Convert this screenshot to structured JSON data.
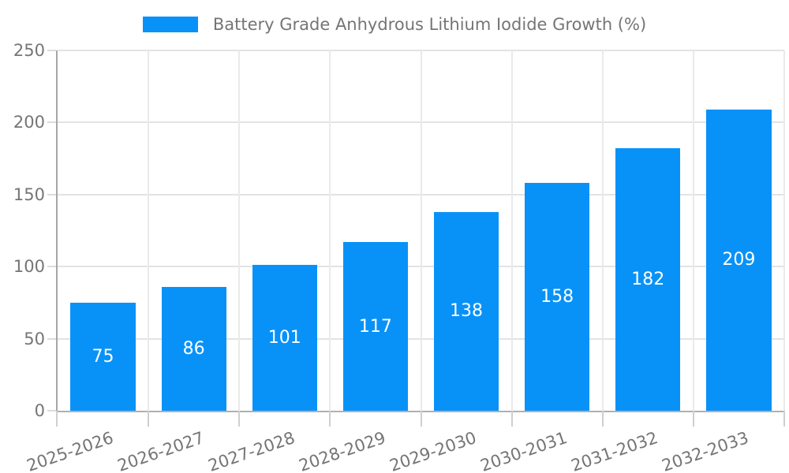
{
  "colors": {
    "bar": "#0892f8",
    "grid_horizontal": "#e3e3e3",
    "grid_vertical": "#eaeaea",
    "axis_line": "#a6a6a6",
    "tick_mark": "#cfcfcf",
    "axis_text": "#757575",
    "bar_label_text": "#ffffff",
    "background": "#ffffff"
  },
  "chart_data": {
    "type": "bar",
    "title": "",
    "xlabel": "",
    "ylabel": "",
    "categories": [
      "2025-2026",
      "2026-2027",
      "2027-2028",
      "2028-2029",
      "2029-2030",
      "2030-2031",
      "2031-2032",
      "2032-2033"
    ],
    "series": [
      {
        "name": "Battery Grade Anhydrous Lithium Iodide Growth (%)",
        "values": [
          75,
          86,
          101,
          117,
          138,
          158,
          182,
          209
        ]
      }
    ],
    "data_labels": {
      "position": "inside-center",
      "color": "#ffffff"
    },
    "ylim": [
      0,
      250
    ],
    "yticks": [
      0,
      50,
      100,
      150,
      200,
      250
    ],
    "grid": true,
    "legend_position": "top",
    "x_label_rotation_deg": -19
  }
}
